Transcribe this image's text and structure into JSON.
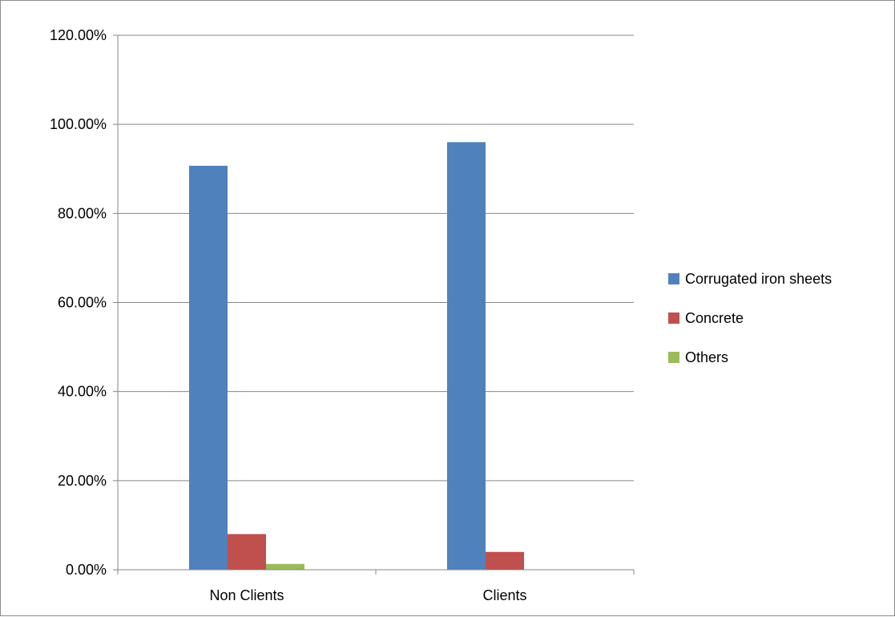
{
  "chart_data": {
    "type": "bar",
    "categories": [
      "Non Clients",
      "Clients"
    ],
    "series": [
      {
        "name": "Corrugated iron sheets",
        "values": [
          90.7,
          96.0
        ],
        "color": "#4f81bd"
      },
      {
        "name": "Concrete",
        "values": [
          8.0,
          4.0
        ],
        "color": "#c0504d"
      },
      {
        "name": "Others",
        "values": [
          1.3,
          0
        ],
        "color": "#9bbb59"
      }
    ],
    "y_ticks": [
      "0.00%",
      "20.00%",
      "40.00%",
      "60.00%",
      "80.00%",
      "100.00%",
      "120.00%"
    ],
    "ylim": [
      0,
      120
    ],
    "grid": true,
    "legend_position": "right"
  }
}
